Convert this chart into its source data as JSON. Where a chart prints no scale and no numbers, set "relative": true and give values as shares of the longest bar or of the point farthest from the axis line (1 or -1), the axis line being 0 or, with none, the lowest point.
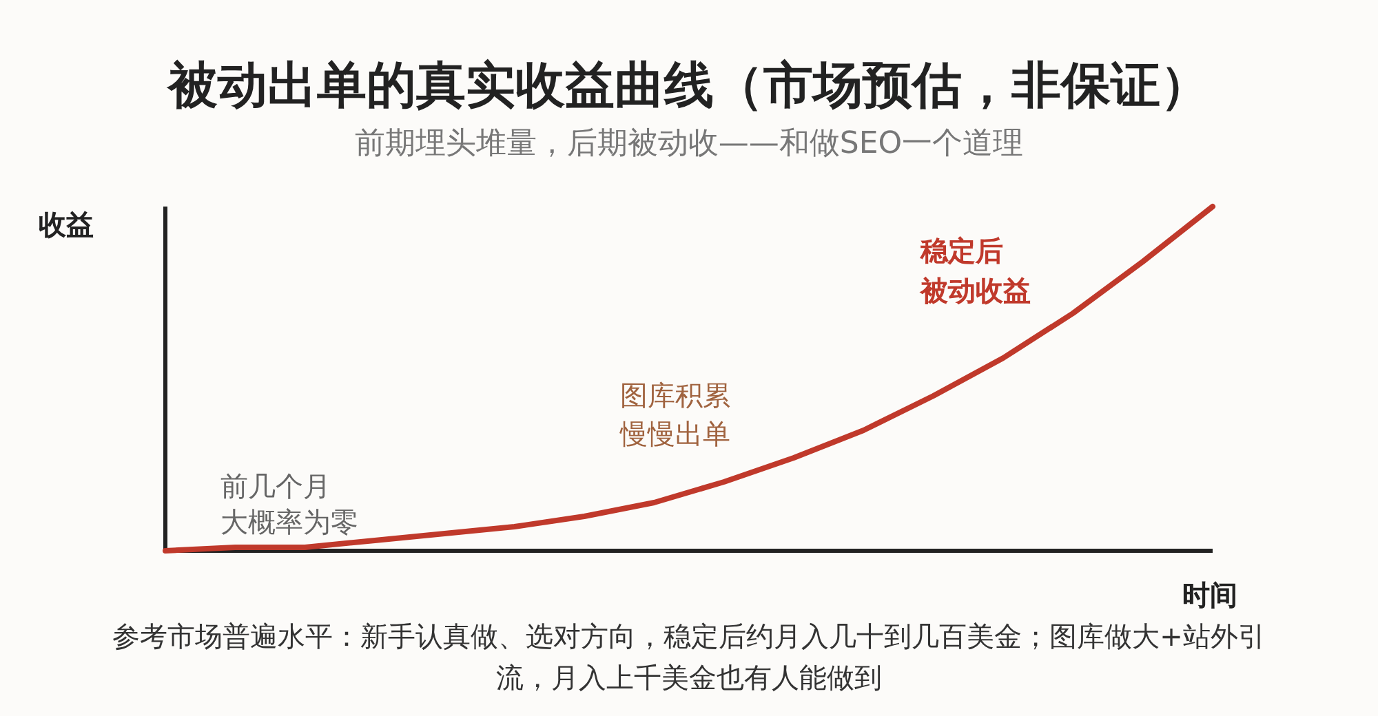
{
  "chart_data": {
    "type": "line",
    "title": "被动出单的真实收益曲线（市场预估，非保证）",
    "subtitle": "前期埋头堆量，后期被动收——和做SEO一个道理",
    "xlabel": "时间",
    "ylabel": "收益",
    "relative": true,
    "categories": [
      null,
      null,
      null,
      null,
      null,
      null,
      null,
      null,
      null,
      null,
      null,
      null,
      null,
      null,
      null,
      null
    ],
    "series": [
      {
        "color": "#c0392b",
        "values": [
          0,
          0.01,
          0.01,
          0.03,
          0.05,
          0.07,
          0.1,
          0.14,
          0.2,
          0.27,
          0.35,
          0.45,
          0.56,
          0.69,
          0.84,
          1
        ]
      }
    ],
    "annotations": [
      "前几个月大概率为零",
      "图库积累慢慢出单",
      "稳定后被动收益",
      "参考市场普遍水平：新手认真做、选对方向，稳定后约月入几十到几百美金；图库做大+站外引流，月入上千美金也有人能做到"
    ]
  }
}
